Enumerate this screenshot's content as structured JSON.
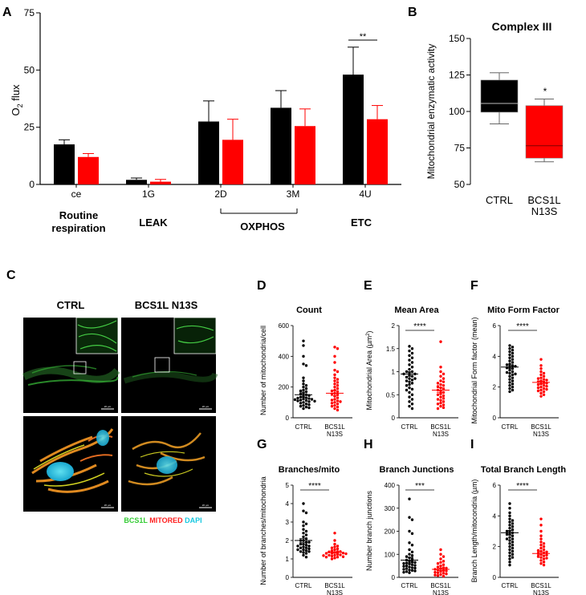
{
  "colors": {
    "ctrl": "#000000",
    "mut": "#ff0000",
    "gfp": "#33cc33",
    "mito": "#ff2020",
    "dapi": "#18c8e0"
  },
  "panels": {
    "A": {
      "letter": "A",
      "ylabel_main": "O",
      "ylabel_sub": "2",
      "ylabel_rest": " flux",
      "sig": "**",
      "groups": [
        "Routine",
        "respiration",
        "LEAK",
        "OXPHOS",
        "ETC"
      ]
    },
    "B": {
      "letter": "B",
      "ylabel": "Mitochondrial enzymatic activity",
      "sig": "*"
    },
    "C": {
      "letter": "C",
      "col_ctrl": "CTRL",
      "col_mut": "BCS1L N13S",
      "scale_bar": "20 µm",
      "legend_gfp": "BCS1L",
      "legend_mito": "MITORED",
      "legend_dapi": "DAPI"
    },
    "D": {
      "letter": "D",
      "ylabel": "Number of  mitochondria/cell"
    },
    "E": {
      "letter": "E",
      "ylabel_pre": "Mitochondrial Area (µm",
      "ylabel_sup": "2",
      "ylabel_post": ")",
      "sig": "****"
    },
    "F": {
      "letter": "F",
      "ylabel": "Mitochondrial Form factor (mean)",
      "sig": "****"
    },
    "G": {
      "letter": "G",
      "ylabel": "Number of  branches/mitochondria",
      "sig": "****"
    },
    "H": {
      "letter": "H",
      "ylabel": "Number branch junctions",
      "sig": "***"
    },
    "I": {
      "letter": "I",
      "ylabel_pre": "Branch Length/mitocondria (µm",
      "ylabel_post": ")",
      "sig": "****"
    }
  },
  "chart_data": [
    {
      "id": "A",
      "type": "bar",
      "title": "",
      "categories": [
        "ce",
        "1G",
        "2D",
        "3M",
        "4U"
      ],
      "series": [
        {
          "name": "CTRL",
          "values": [
            17.5,
            2,
            27.5,
            33.5,
            48
          ],
          "errors": [
            2,
            0.8,
            9,
            7.5,
            12
          ]
        },
        {
          "name": "BCS1L N13S",
          "values": [
            12,
            1.2,
            19.5,
            25.5,
            28.5
          ],
          "errors": [
            1.5,
            1,
            9,
            7.5,
            6
          ]
        }
      ],
      "xlabel": "",
      "ylabel": "O2 flux",
      "ylim": [
        0,
        75
      ],
      "yticks": [
        0,
        25,
        50,
        75
      ]
    },
    {
      "id": "B",
      "type": "box",
      "title": "Complex III",
      "categories": [
        "CTRL",
        "BCS1L\nN13S"
      ],
      "boxes": [
        {
          "min": 91.5,
          "q1": 99.5,
          "median": 105.5,
          "q3": 121.5,
          "max": 126.5
        },
        {
          "min": 65.5,
          "q1": 68,
          "median": 76.5,
          "q3": 104,
          "max": 108.5
        }
      ],
      "ylabel": "Mitochondrial enzymatic activity",
      "ylim": [
        50,
        150
      ],
      "yticks": [
        50,
        75,
        100,
        125,
        150
      ]
    },
    {
      "id": "D",
      "type": "scatter",
      "title": "Count",
      "categories": [
        "CTRL",
        "BCS1L\nN13S"
      ],
      "groups": [
        {
          "values": [
            500,
            470,
            400,
            350,
            340,
            260,
            240,
            220,
            210,
            200,
            190,
            180,
            175,
            170,
            160,
            155,
            150,
            145,
            140,
            135,
            130,
            128,
            125,
            122,
            120,
            118,
            115,
            112,
            110,
            108,
            105,
            100,
            95,
            90,
            85,
            80,
            75,
            70,
            65,
            60
          ],
          "mean": 150,
          "sem": 17
        },
        {
          "values": [
            460,
            450,
            400,
            360,
            310,
            300,
            280,
            260,
            250,
            240,
            230,
            220,
            210,
            200,
            190,
            180,
            175,
            170,
            160,
            155,
            150,
            140,
            130,
            120,
            115,
            110,
            105,
            100,
            95,
            90,
            80,
            75,
            70,
            60,
            50
          ],
          "mean": 160,
          "sem": 15
        }
      ],
      "ylabel": "Number of  mitochondria/cell",
      "ylim": [
        0,
        600
      ],
      "yticks": [
        0,
        200,
        400,
        600
      ]
    },
    {
      "id": "E",
      "type": "scatter",
      "title": "Mean Area",
      "categories": [
        "CTRL",
        "BCS1L\nN13S"
      ],
      "groups": [
        {
          "values": [
            1.55,
            1.5,
            1.45,
            1.4,
            1.35,
            1.3,
            1.25,
            1.2,
            1.15,
            1.1,
            1.05,
            1.0,
            1.0,
            0.98,
            0.95,
            0.95,
            0.92,
            0.9,
            0.88,
            0.85,
            0.85,
            0.82,
            0.8,
            0.78,
            0.75,
            0.72,
            0.7,
            0.65,
            0.62,
            0.6,
            0.55,
            0.5,
            0.45,
            0.4,
            0.35,
            0.3,
            0.25,
            0.2
          ],
          "mean": 0.95,
          "sem": 0.05
        },
        {
          "values": [
            1.65,
            1.1,
            1.0,
            0.95,
            0.9,
            0.85,
            0.8,
            0.78,
            0.75,
            0.72,
            0.7,
            0.68,
            0.65,
            0.62,
            0.6,
            0.58,
            0.55,
            0.52,
            0.5,
            0.48,
            0.45,
            0.42,
            0.4,
            0.38,
            0.35,
            0.32,
            0.3,
            0.28,
            0.25,
            0.22,
            0.2
          ],
          "mean": 0.6,
          "sem": 0.05
        }
      ],
      "ylabel": "Mitochondrial Area (µm2)",
      "ylim": [
        0,
        2.0
      ],
      "yticks": [
        0,
        0.5,
        1.0,
        1.5,
        2.0
      ]
    },
    {
      "id": "F",
      "type": "scatter",
      "title": "Mito Form Factor",
      "categories": [
        "CTRL",
        "BCS1L\nN13S"
      ],
      "groups": [
        {
          "values": [
            4.7,
            4.6,
            4.5,
            4.4,
            4.3,
            4.2,
            4.1,
            4.0,
            3.9,
            3.8,
            3.7,
            3.6,
            3.5,
            3.45,
            3.4,
            3.35,
            3.3,
            3.25,
            3.2,
            3.1,
            3.0,
            2.95,
            2.9,
            2.85,
            2.8,
            2.7,
            2.6,
            2.5,
            2.4,
            2.3,
            2.2,
            2.1,
            2.0,
            1.9,
            1.8,
            1.7
          ],
          "mean": 3.3,
          "sem": 0.1
        },
        {
          "values": [
            3.8,
            3.4,
            3.2,
            3.0,
            2.9,
            2.8,
            2.7,
            2.6,
            2.55,
            2.5,
            2.45,
            2.4,
            2.35,
            2.3,
            2.25,
            2.2,
            2.15,
            2.1,
            2.05,
            2.0,
            1.95,
            1.9,
            1.85,
            1.8,
            1.75,
            1.7,
            1.6,
            1.5,
            1.4
          ],
          "mean": 2.3,
          "sem": 0.08
        }
      ],
      "ylabel": "Mitochondrial Form factor (mean)",
      "ylim": [
        0,
        6
      ],
      "yticks": [
        0,
        2,
        4,
        6
      ]
    },
    {
      "id": "G",
      "type": "scatter",
      "title": "Branches/mito",
      "categories": [
        "CTRL",
        "BCS1L\nN13S"
      ],
      "groups": [
        {
          "values": [
            4.0,
            3.6,
            3.5,
            3.0,
            2.9,
            2.8,
            2.6,
            2.5,
            2.4,
            2.3,
            2.2,
            2.1,
            2.0,
            2.0,
            1.9,
            1.9,
            1.8,
            1.8,
            1.75,
            1.7,
            1.7,
            1.65,
            1.6,
            1.6,
            1.55,
            1.5,
            1.5,
            1.45,
            1.4,
            1.4,
            1.35,
            1.3,
            1.2,
            1.1
          ],
          "mean": 2.0,
          "sem": 0.1
        },
        {
          "values": [
            2.4,
            2.0,
            1.8,
            1.7,
            1.65,
            1.6,
            1.55,
            1.5,
            1.45,
            1.4,
            1.4,
            1.38,
            1.35,
            1.32,
            1.3,
            1.3,
            1.28,
            1.25,
            1.22,
            1.2,
            1.2,
            1.18,
            1.15,
            1.12,
            1.1,
            1.1,
            1.05,
            1.0
          ],
          "mean": 1.35,
          "sem": 0.04
        }
      ],
      "ylabel": "Number of  branches/mitochondria",
      "ylim": [
        0,
        5
      ],
      "yticks": [
        0,
        1,
        2,
        3,
        4,
        5
      ]
    },
    {
      "id": "H",
      "type": "scatter",
      "title": "Branch Junctions",
      "categories": [
        "CTRL",
        "BCS1L\nN13S"
      ],
      "groups": [
        {
          "values": [
            340,
            260,
            250,
            200,
            190,
            150,
            140,
            120,
            110,
            100,
            95,
            90,
            85,
            80,
            75,
            70,
            68,
            65,
            62,
            60,
            58,
            55,
            52,
            50,
            48,
            45,
            42,
            40,
            38,
            35,
            32,
            30,
            28,
            25,
            22,
            20
          ],
          "mean": 75,
          "sem": 12
        },
        {
          "values": [
            120,
            100,
            90,
            80,
            70,
            65,
            60,
            55,
            50,
            45,
            42,
            40,
            38,
            35,
            32,
            30,
            28,
            25,
            22,
            20,
            18,
            15,
            12,
            10,
            8,
            5
          ],
          "mean": 35,
          "sem": 5
        }
      ],
      "ylabel": "Number branch junctions",
      "ylim": [
        0,
        400
      ],
      "yticks": [
        0,
        100,
        200,
        300,
        400
      ]
    },
    {
      "id": "I",
      "type": "scatter",
      "title": "Total Branch Length",
      "categories": [
        "CTRL",
        "BCS1L\nN13S"
      ],
      "groups": [
        {
          "values": [
            4.8,
            4.5,
            4.2,
            4.0,
            3.8,
            3.7,
            3.6,
            3.5,
            3.4,
            3.3,
            3.2,
            3.1,
            3.0,
            3.0,
            2.9,
            2.8,
            2.8,
            2.7,
            2.6,
            2.5,
            2.5,
            2.4,
            2.3,
            2.2,
            2.1,
            2.0,
            1.9,
            1.8,
            1.7,
            1.6,
            1.5,
            1.4,
            1.3,
            1.2,
            1.0,
            0.8
          ],
          "mean": 2.9,
          "sem": 0.15
        },
        {
          "values": [
            3.8,
            3.4,
            3.0,
            2.7,
            2.5,
            2.3,
            2.2,
            2.1,
            2.0,
            1.9,
            1.8,
            1.75,
            1.7,
            1.65,
            1.6,
            1.55,
            1.5,
            1.45,
            1.4,
            1.35,
            1.3,
            1.25,
            1.2,
            1.1,
            1.0,
            0.9,
            0.8
          ],
          "mean": 1.55,
          "sem": 0.1
        }
      ],
      "ylabel": "Branch Length/mitocondria (µm)",
      "ylim": [
        0,
        6
      ],
      "yticks": [
        0,
        2,
        4,
        6
      ]
    }
  ]
}
